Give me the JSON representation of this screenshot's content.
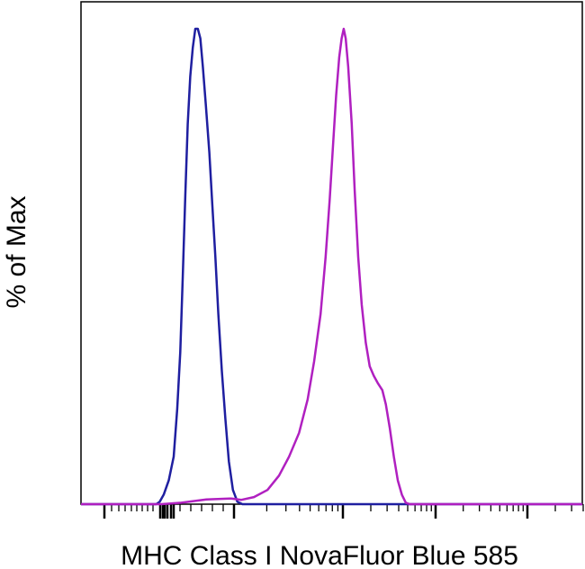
{
  "chart_data": {
    "type": "line",
    "title": "",
    "xlabel": "MHC Class I NovaFluor Blue 585",
    "ylabel": "% of Max",
    "x_scale": "biexponential",
    "x_tick_labels": [],
    "y_tick_labels": [],
    "ylim": [
      0,
      100
    ],
    "grid": false,
    "legend": "none",
    "series": [
      {
        "color": "#1f1fa0",
        "points": [
          [
            0.0,
            0
          ],
          [
            0.15,
            0
          ],
          [
            0.157,
            0.5
          ],
          [
            0.165,
            2
          ],
          [
            0.175,
            5
          ],
          [
            0.185,
            10
          ],
          [
            0.192,
            20
          ],
          [
            0.198,
            32
          ],
          [
            0.203,
            48
          ],
          [
            0.208,
            65
          ],
          [
            0.213,
            80
          ],
          [
            0.218,
            90
          ],
          [
            0.223,
            96
          ],
          [
            0.228,
            100
          ],
          [
            0.233,
            100
          ],
          [
            0.238,
            98
          ],
          [
            0.243,
            92
          ],
          [
            0.249,
            84
          ],
          [
            0.256,
            74
          ],
          [
            0.262,
            63
          ],
          [
            0.268,
            52
          ],
          [
            0.274,
            40
          ],
          [
            0.281,
            28
          ],
          [
            0.288,
            18
          ],
          [
            0.295,
            9
          ],
          [
            0.303,
            3
          ],
          [
            0.312,
            0.5
          ],
          [
            0.322,
            0
          ],
          [
            1.0,
            0
          ]
        ]
      },
      {
        "color": "#b020c0",
        "points": [
          [
            0.0,
            0
          ],
          [
            0.16,
            0
          ],
          [
            0.2,
            0.3
          ],
          [
            0.25,
            1
          ],
          [
            0.3,
            1.2
          ],
          [
            0.32,
            0.9
          ],
          [
            0.345,
            1.5
          ],
          [
            0.372,
            3
          ],
          [
            0.395,
            6
          ],
          [
            0.415,
            10
          ],
          [
            0.435,
            15
          ],
          [
            0.452,
            22
          ],
          [
            0.465,
            30
          ],
          [
            0.478,
            40
          ],
          [
            0.488,
            52
          ],
          [
            0.496,
            64
          ],
          [
            0.503,
            76
          ],
          [
            0.509,
            86
          ],
          [
            0.515,
            94
          ],
          [
            0.52,
            98
          ],
          [
            0.524,
            100
          ],
          [
            0.528,
            98
          ],
          [
            0.533,
            92
          ],
          [
            0.54,
            80
          ],
          [
            0.546,
            66
          ],
          [
            0.553,
            52
          ],
          [
            0.56,
            42
          ],
          [
            0.568,
            34
          ],
          [
            0.576,
            29
          ],
          [
            0.584,
            27
          ],
          [
            0.592,
            25.5
          ],
          [
            0.601,
            24
          ],
          [
            0.608,
            21
          ],
          [
            0.616,
            16
          ],
          [
            0.624,
            10
          ],
          [
            0.632,
            5
          ],
          [
            0.64,
            2
          ],
          [
            0.648,
            0.3
          ],
          [
            0.656,
            0
          ],
          [
            1.0,
            0
          ]
        ]
      }
    ]
  },
  "styles": {
    "frame_color": "#000000",
    "tick_color": "#000000"
  }
}
